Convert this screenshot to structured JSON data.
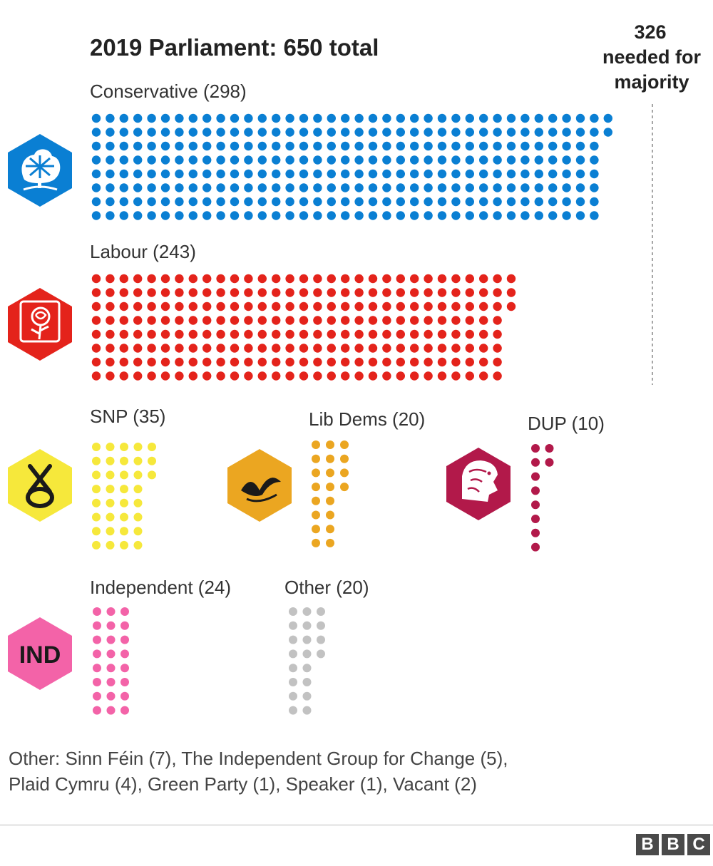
{
  "chart_data": {
    "type": "waffle",
    "title": "2019 Parliament: 650 total",
    "majority_label_lines": [
      "326",
      "needed for",
      "majority"
    ],
    "majority_seats": 326,
    "total_seats": 650,
    "parties": [
      {
        "key": "conservative",
        "name": "Conservative",
        "seats": 298,
        "label": "Conservative (298)",
        "color": "#0a7fd3",
        "logo": "tree-logo-icon"
      },
      {
        "key": "labour",
        "name": "Labour",
        "seats": 243,
        "label": "Labour (243)",
        "color": "#e4231b",
        "logo": "rose-logo-icon"
      },
      {
        "key": "snp",
        "name": "SNP",
        "seats": 35,
        "label": "SNP (35)",
        "color": "#f6e83b",
        "logo": "snp-logo-icon"
      },
      {
        "key": "libdems",
        "name": "Lib Dems",
        "seats": 20,
        "label": "Lib Dems (20)",
        "color": "#eba621",
        "logo": "bird-logo-icon"
      },
      {
        "key": "dup",
        "name": "DUP",
        "seats": 10,
        "label": "DUP  (10)",
        "color": "#b2194a",
        "logo": "lion-logo-icon"
      },
      {
        "key": "independent",
        "name": "Independent",
        "seats": 24,
        "label": "Independent (24)",
        "color": "#f363a8",
        "logo": "ind-logo-icon",
        "logo_text": "IND"
      },
      {
        "key": "other",
        "name": "Other",
        "seats": 20,
        "label": "Other (20)",
        "color": "#c2c2c2"
      }
    ]
  },
  "footnote": {
    "line1": "Other: Sinn Féin (7), The Independent Group for Change (5),",
    "line2": "Plaid Cymru (4), Green Party (1), Speaker (1), Vacant (2)"
  },
  "branding": {
    "letters": [
      "B",
      "B",
      "C"
    ]
  }
}
